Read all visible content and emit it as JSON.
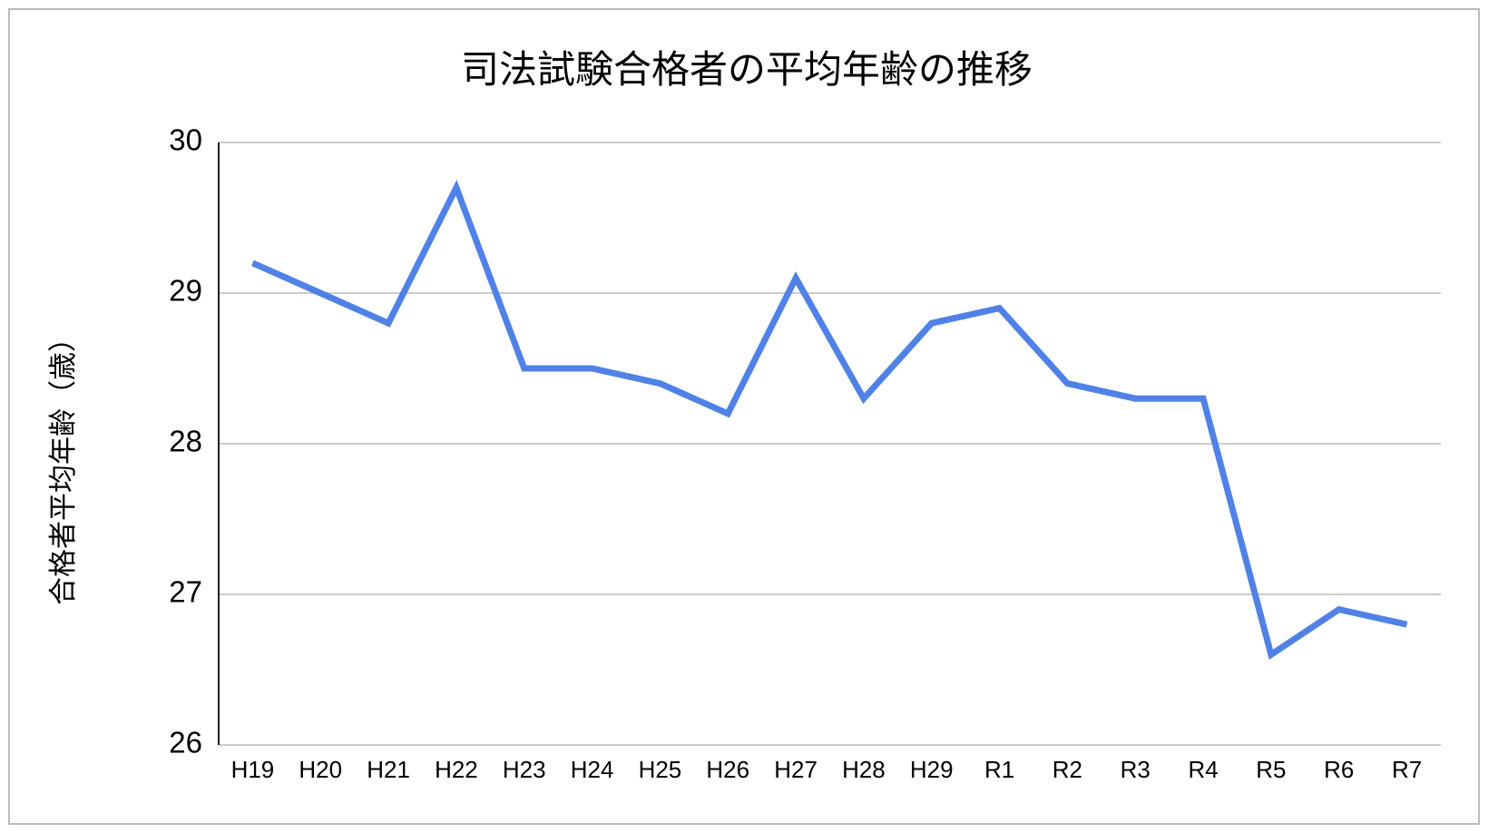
{
  "chart_data": {
    "type": "line",
    "title": "司法試験合格者の平均年齢の推移",
    "y_label": "合格者平均年齢（歳）",
    "categories": [
      "H19",
      "H20",
      "H21",
      "H22",
      "H23",
      "H24",
      "H25",
      "H26",
      "H27",
      "H28",
      "H29",
      "R1",
      "R2",
      "R3",
      "R4",
      "R5",
      "R6",
      "R7"
    ],
    "series": [
      {
        "color": "#5081e6",
        "values": [
          29.2,
          29.0,
          28.8,
          29.7,
          28.5,
          28.5,
          28.4,
          28.2,
          29.1,
          28.3,
          28.8,
          28.9,
          28.4,
          28.3,
          28.3,
          26.6,
          26.9,
          26.8
        ]
      }
    ],
    "ylim": [
      26,
      30
    ],
    "yticks": [
      26,
      27,
      28,
      29,
      30
    ],
    "grid": true
  }
}
